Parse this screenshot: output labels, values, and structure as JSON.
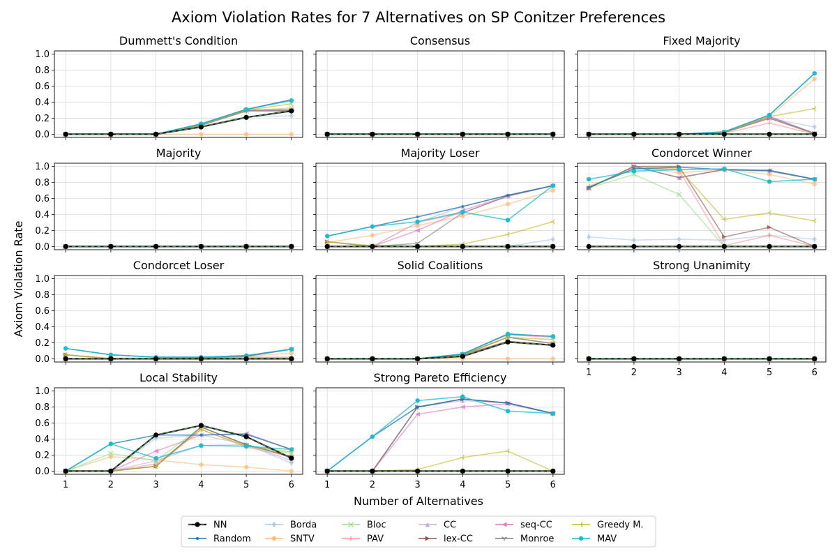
{
  "figure": {
    "suptitle": "Axiom Violation Rates for 7 Alternatives on SP Conitzer Preferences",
    "xlabel": "Number of Alternatives",
    "ylabel": "Axiom Violation Rate"
  },
  "chart_data": {
    "type": "line",
    "x": [
      1,
      2,
      3,
      4,
      5,
      6
    ],
    "ylim": [
      0,
      1.0
    ],
    "yticks": [
      "0.0",
      "0.2",
      "0.4",
      "0.6",
      "0.8",
      "1.0"
    ],
    "xticks": [
      "1",
      "2",
      "3",
      "4",
      "5",
      "6"
    ],
    "grid": true,
    "legend_position": "bottom-center",
    "series_styles": [
      {
        "name": "NN",
        "color": "#000000",
        "marker": "circle",
        "dashed": true
      },
      {
        "name": "Random",
        "color": "#1f77b4",
        "marker": "point"
      },
      {
        "name": "Borda",
        "color": "#aec7e8",
        "marker": "diamond"
      },
      {
        "name": "SNTV",
        "color": "#ffbb78",
        "marker": "hexagon"
      },
      {
        "name": "Bloc",
        "color": "#98df8a",
        "marker": "x"
      },
      {
        "name": "PAV",
        "color": "#ff9896",
        "marker": "plus"
      },
      {
        "name": "CC",
        "color": "#c5b0d5",
        "marker": "triangle-up"
      },
      {
        "name": "lex-CC",
        "color": "#8c564b",
        "marker": "triangle-right"
      },
      {
        "name": "seq-CC",
        "color": "#e377c2",
        "marker": "triangle-left"
      },
      {
        "name": "Monroe",
        "color": "#7f7f7f",
        "marker": "tri-down"
      },
      {
        "name": "Greedy M.",
        "color": "#bcbd22",
        "marker": "tri-left"
      },
      {
        "name": "MAV",
        "color": "#17becf",
        "marker": "octagon"
      }
    ],
    "panels": [
      {
        "title": "Dummett's Condition",
        "series": {
          "NN": [
            0,
            0,
            0,
            0.09,
            0.21,
            0.29
          ],
          "Random": [
            0,
            0,
            0,
            0.13,
            0.31,
            0.43
          ],
          "Borda": [
            0,
            0,
            0,
            0.1,
            0.22,
            0.23
          ],
          "SNTV": [
            0,
            0,
            0,
            0,
            0,
            0
          ],
          "Bloc": [
            0,
            0,
            0,
            0.11,
            0.29,
            0.33
          ],
          "PAV": [
            0,
            0,
            0,
            0.11,
            0.29,
            0.29
          ],
          "CC": [
            0,
            0,
            0,
            0.13,
            0.31,
            0.43
          ],
          "lex-CC": [
            0,
            0,
            0,
            0.12,
            0.3,
            0.3
          ],
          "seq-CC": [
            0,
            0,
            0,
            0.12,
            0.3,
            0.31
          ],
          "Monroe": [
            0,
            0,
            0,
            0.11,
            0.29,
            0.29
          ],
          "Greedy M.": [
            0,
            0,
            0,
            0.12,
            0.3,
            0.38
          ],
          "MAV": [
            0,
            0,
            0,
            0.13,
            0.31,
            0.42
          ]
        }
      },
      {
        "title": "Consensus",
        "series": {
          "NN": [
            0,
            0,
            0,
            0,
            0,
            0
          ],
          "Random": [
            0,
            0,
            0,
            0,
            0,
            0
          ],
          "Borda": [
            0,
            0,
            0,
            0,
            0,
            0
          ],
          "SNTV": [
            0,
            0,
            0,
            0,
            0,
            0
          ],
          "Bloc": [
            0,
            0,
            0,
            0,
            0,
            0
          ],
          "PAV": [
            0,
            0,
            0,
            0,
            0,
            0
          ],
          "CC": [
            0,
            0,
            0,
            0,
            0,
            0
          ],
          "lex-CC": [
            0,
            0,
            0,
            0,
            0,
            0
          ],
          "seq-CC": [
            0,
            0,
            0,
            0,
            0,
            0
          ],
          "Monroe": [
            0,
            0,
            0,
            0,
            0,
            0
          ],
          "Greedy M.": [
            0,
            0,
            0,
            0,
            0,
            0
          ],
          "MAV": [
            0,
            0,
            0,
            0,
            0,
            0
          ]
        }
      },
      {
        "title": "Fixed Majority",
        "series": {
          "NN": [
            0,
            0,
            0,
            0,
            0,
            0
          ],
          "Random": [
            0,
            0,
            0,
            0.03,
            0.24,
            0.76
          ],
          "Borda": [
            0,
            0,
            0,
            0.02,
            0.2,
            0.09
          ],
          "SNTV": [
            0,
            0,
            0,
            0.02,
            0.22,
            0.69
          ],
          "Bloc": [
            0,
            0,
            0,
            0.02,
            0.2,
            0
          ],
          "PAV": [
            0,
            0,
            0,
            0.01,
            0.14,
            0
          ],
          "CC": [
            0,
            0,
            0,
            0.02,
            0.22,
            0.01
          ],
          "lex-CC": [
            0,
            0,
            0,
            0.02,
            0.2,
            0.01
          ],
          "seq-CC": [
            0,
            0,
            0,
            0.02,
            0.2,
            0.01
          ],
          "Monroe": [
            0,
            0,
            0,
            0.02,
            0.22,
            0.01
          ],
          "Greedy M.": [
            0,
            0,
            0,
            0.02,
            0.22,
            0.32
          ],
          "MAV": [
            0,
            0,
            0,
            0.03,
            0.24,
            0.76
          ]
        }
      },
      {
        "title": "Majority",
        "series": {
          "NN": [
            0,
            0,
            0,
            0,
            0,
            0
          ],
          "Random": [
            0,
            0,
            0,
            0,
            0,
            0
          ],
          "Borda": [
            0,
            0,
            0,
            0,
            0,
            0
          ],
          "SNTV": [
            0,
            0,
            0,
            0,
            0,
            0
          ],
          "Bloc": [
            0,
            0,
            0,
            0,
            0,
            0
          ],
          "PAV": [
            0,
            0,
            0,
            0,
            0,
            0
          ],
          "CC": [
            0,
            0,
            0,
            0,
            0,
            0
          ],
          "lex-CC": [
            0,
            0,
            0,
            0,
            0,
            0
          ],
          "seq-CC": [
            0,
            0,
            0,
            0,
            0,
            0
          ],
          "Monroe": [
            0,
            0,
            0,
            0,
            0,
            0
          ],
          "Greedy M.": [
            0,
            0,
            0,
            0,
            0,
            0
          ],
          "MAV": [
            0,
            0,
            0,
            0,
            0,
            0
          ]
        }
      },
      {
        "title": "Majority Loser",
        "series": {
          "NN": [
            0,
            0,
            0,
            0,
            0,
            0
          ],
          "Random": [
            0.13,
            0.25,
            0.37,
            0.5,
            0.64,
            0.76
          ],
          "Borda": [
            0,
            0,
            0,
            0,
            0,
            0.09
          ],
          "SNTV": [
            0.05,
            0.14,
            0.26,
            0.38,
            0.53,
            0.7
          ],
          "Bloc": [
            0,
            0,
            0,
            0,
            0,
            0
          ],
          "PAV": [
            0,
            0,
            0.3,
            0.42,
            0.63,
            0.76
          ],
          "CC": [
            0,
            0,
            0.3,
            0.5,
            0.64,
            0.76
          ],
          "lex-CC": [
            0.06,
            0,
            0,
            0,
            0,
            0
          ],
          "seq-CC": [
            0,
            0,
            0.2,
            0.45,
            0.63,
            0.76
          ],
          "Monroe": [
            0,
            0,
            0.04,
            0.42,
            0.63,
            0.76
          ],
          "Greedy M.": [
            0.06,
            0.01,
            0,
            0.03,
            0.15,
            0.31
          ],
          "MAV": [
            0.13,
            0.25,
            0.31,
            0.43,
            0.33,
            0.76
          ]
        }
      },
      {
        "title": "Condorcet Winner",
        "series": {
          "NN": [
            0,
            0,
            0,
            0,
            0,
            0
          ],
          "Random": [
            0.74,
            0.97,
            0.99,
            0.96,
            0.95,
            0.84
          ],
          "Borda": [
            0.12,
            0.08,
            0.09,
            0.08,
            0.14,
            0.09
          ],
          "SNTV": [
            0.73,
            0.99,
            0.92,
            0.96,
            0.9,
            0.78
          ],
          "Bloc": [
            0.73,
            0.9,
            0.65,
            0,
            0,
            0
          ],
          "PAV": [
            0.73,
            1.0,
            0.95,
            0.01,
            0.14,
            0
          ],
          "CC": [
            0.73,
            1.0,
            0.86,
            0.96,
            0.95,
            0.84
          ],
          "lex-CC": [
            0.73,
            1.0,
            1.0,
            0.12,
            0.24,
            0
          ],
          "seq-CC": [
            0.73,
            1.0,
            0.86,
            0.96,
            0.95,
            0.84
          ],
          "Monroe": [
            0.73,
            1.0,
            0.86,
            0.96,
            0.94,
            0.84
          ],
          "Greedy M.": [
            0.75,
            0.97,
            0.97,
            0.34,
            0.42,
            0.32
          ],
          "MAV": [
            0.84,
            0.94,
            0.96,
            0.97,
            0.81,
            0.84
          ]
        }
      },
      {
        "title": "Condorcet Loser",
        "series": {
          "NN": [
            0,
            0,
            0,
            0,
            0,
            0
          ],
          "Random": [
            0.13,
            0.05,
            0.02,
            0.02,
            0.04,
            0.12
          ],
          "Borda": [
            0,
            0,
            0,
            0,
            0,
            0
          ],
          "SNTV": [
            0.05,
            0.01,
            0.01,
            0.01,
            0.03,
            0.07
          ],
          "Bloc": [
            0,
            0,
            0,
            0,
            0,
            0
          ],
          "PAV": [
            0,
            0,
            0,
            0,
            0.02,
            0.02
          ],
          "CC": [
            0,
            0,
            0,
            0.01,
            0.03,
            0.12
          ],
          "lex-CC": [
            0.05,
            0,
            0,
            0,
            0,
            0
          ],
          "seq-CC": [
            0,
            0,
            0,
            0.01,
            0.03,
            0.12
          ],
          "Monroe": [
            0,
            0,
            0,
            0.01,
            0.03,
            0.12
          ],
          "Greedy M.": [
            0.05,
            0,
            0,
            0,
            0.02,
            0.01
          ],
          "MAV": [
            0.13,
            0.05,
            0.02,
            0.02,
            0.04,
            0.12
          ]
        }
      },
      {
        "title": "Solid Coalitions",
        "series": {
          "NN": [
            0,
            0,
            0,
            0.03,
            0.21,
            0.17
          ],
          "Random": [
            0,
            0,
            0,
            0.06,
            0.31,
            0.28
          ],
          "Borda": [
            0,
            0,
            0,
            0.05,
            0.27,
            0.19
          ],
          "SNTV": [
            0,
            0,
            0,
            0,
            0,
            0
          ],
          "Bloc": [
            0,
            0,
            0,
            0.05,
            0.27,
            0.19
          ],
          "PAV": [
            0,
            0,
            0,
            0.05,
            0.27,
            0.19
          ],
          "CC": [
            0,
            0,
            0,
            0.06,
            0.31,
            0.28
          ],
          "lex-CC": [
            0,
            0,
            0,
            0.05,
            0.22,
            0.17
          ],
          "seq-CC": [
            0,
            0,
            0,
            0.06,
            0.3,
            0.27
          ],
          "Monroe": [
            0,
            0,
            0,
            0.05,
            0.27,
            0.19
          ],
          "Greedy M.": [
            0,
            0,
            0,
            0.05,
            0.27,
            0.24
          ],
          "MAV": [
            0,
            0,
            0,
            0.06,
            0.31,
            0.28
          ]
        }
      },
      {
        "title": "Strong Unanimity",
        "series": {
          "NN": [
            0,
            0,
            0,
            0,
            0,
            0
          ],
          "Random": [
            0,
            0,
            0,
            0,
            0,
            0
          ],
          "Borda": [
            0,
            0,
            0,
            0,
            0,
            0
          ],
          "SNTV": [
            0,
            0,
            0,
            0,
            0,
            0
          ],
          "Bloc": [
            0,
            0,
            0,
            0,
            0,
            0
          ],
          "PAV": [
            0,
            0,
            0,
            0,
            0,
            0
          ],
          "CC": [
            0,
            0,
            0,
            0,
            0,
            0
          ],
          "lex-CC": [
            0,
            0,
            0,
            0,
            0,
            0
          ],
          "seq-CC": [
            0,
            0,
            0,
            0,
            0,
            0
          ],
          "Monroe": [
            0,
            0,
            0,
            0,
            0,
            0
          ],
          "Greedy M.": [
            0,
            0,
            0,
            0,
            0,
            0
          ],
          "MAV": [
            0,
            0,
            0,
            0,
            0,
            0
          ]
        }
      },
      {
        "title": "Local Stability",
        "series": {
          "NN": [
            0,
            0,
            0.45,
            0.57,
            0.43,
            0.16
          ],
          "Random": [
            0,
            0.34,
            0.45,
            0.45,
            0.46,
            0.27
          ],
          "Borda": [
            0,
            0,
            0.41,
            0.45,
            0.33,
            0.1
          ],
          "SNTV": [
            0,
            0.18,
            0.14,
            0.08,
            0.05,
            0
          ],
          "Bloc": [
            0,
            0.22,
            0.13,
            0.55,
            0.32,
            0.22
          ],
          "PAV": [
            0,
            0,
            0.09,
            0.52,
            0.3,
            0.18
          ],
          "CC": [
            0,
            0,
            0.13,
            0.32,
            0.33,
            0.13
          ],
          "lex-CC": [
            0,
            0,
            0.06,
            0.55,
            0.33,
            0.18
          ],
          "seq-CC": [
            0,
            0,
            0.25,
            0.45,
            0.47,
            0.27
          ],
          "Monroe": [
            0,
            0,
            0.06,
            0.55,
            0.33,
            0.18
          ],
          "Greedy M.": [
            0,
            0,
            0.06,
            0.52,
            0.31,
            0.24
          ],
          "MAV": [
            0,
            0.34,
            0.16,
            0.32,
            0.31,
            0.27
          ]
        }
      },
      {
        "title": "Strong Pareto Efficiency",
        "series": {
          "NN": [
            0,
            0,
            0,
            0,
            0,
            0
          ],
          "Random": [
            0,
            0.43,
            0.8,
            0.9,
            0.85,
            0.72
          ],
          "Borda": [
            0,
            0,
            0,
            0,
            0,
            0
          ],
          "SNTV": [
            0,
            0,
            0,
            0,
            0,
            0
          ],
          "Bloc": [
            0,
            0,
            0,
            0,
            0,
            0
          ],
          "PAV": [
            0,
            0,
            0,
            0,
            0,
            0
          ],
          "CC": [
            0,
            0,
            0.8,
            0.88,
            0.85,
            0.72
          ],
          "lex-CC": [
            0,
            0,
            0.8,
            0.9,
            0.85,
            0.72
          ],
          "seq-CC": [
            0,
            0,
            0.71,
            0.8,
            0.84,
            0.72
          ],
          "Monroe": [
            0,
            0,
            0.8,
            0.9,
            0.85,
            0.72
          ],
          "Greedy M.": [
            0,
            0,
            0.02,
            0.17,
            0.25,
            0
          ],
          "MAV": [
            0,
            0.43,
            0.88,
            0.93,
            0.75,
            0.72
          ]
        }
      }
    ]
  }
}
